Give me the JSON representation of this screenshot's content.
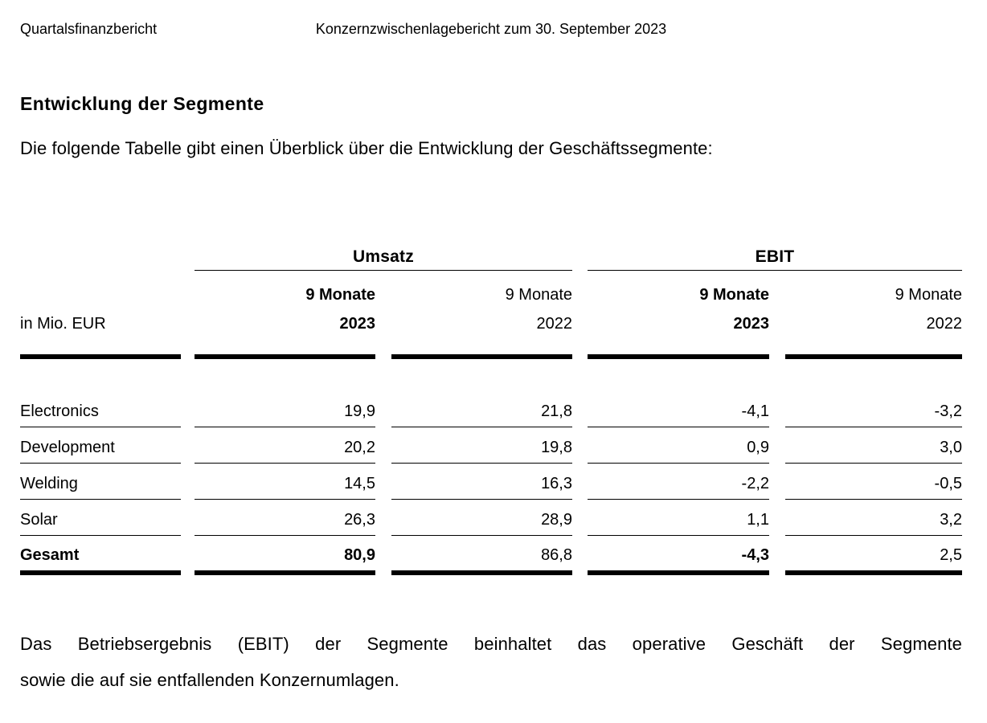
{
  "header": {
    "left": "Quartalsfinanzbericht",
    "center": "Konzernzwischenlagebericht zum 30. September 2023"
  },
  "section": {
    "title": "Entwicklung der Segmente",
    "intro": "Die folgende Tabelle gibt einen Überblick über die Entwicklung der Geschäftssegmente:"
  },
  "table": {
    "unit_label": "in Mio. EUR",
    "groups": [
      {
        "label": "Umsatz"
      },
      {
        "label": "EBIT"
      }
    ],
    "col_headers": [
      {
        "line1": "9 Monate",
        "line2": "2023"
      },
      {
        "line1": "9 Monate",
        "line2": "2022"
      },
      {
        "line1": "9 Monate",
        "line2": "2023"
      },
      {
        "line1": "9 Monate",
        "line2": "2022"
      }
    ],
    "rows": [
      {
        "label": "Electronics",
        "values": [
          "19,9",
          "21,8",
          "-4,1",
          "-3,2"
        ]
      },
      {
        "label": "Development",
        "values": [
          "20,2",
          "19,8",
          "0,9",
          "3,0"
        ]
      },
      {
        "label": "Welding",
        "values": [
          "14,5",
          "16,3",
          "-2,2",
          "-0,5"
        ]
      },
      {
        "label": "Solar",
        "values": [
          "26,3",
          "28,9",
          "1,1",
          "3,2"
        ]
      },
      {
        "label": "Gesamt",
        "values": [
          "80,9",
          "86,8",
          "-4,3",
          "2,5"
        ]
      }
    ]
  },
  "footnote": {
    "line1": "Das Betriebsergebnis (EBIT) der Segmente beinhaltet das operative Geschäft der Segmente",
    "line2": "sowie die auf sie entfallenden Konzernumlagen."
  }
}
